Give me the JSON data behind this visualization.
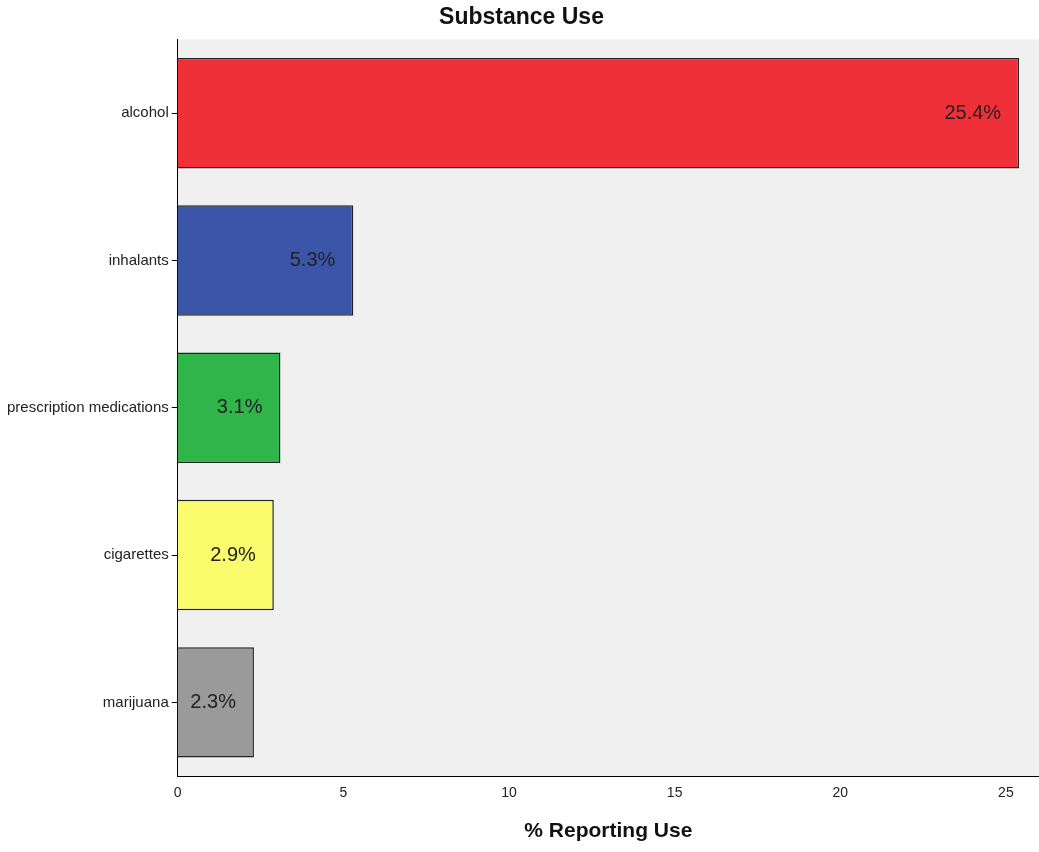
{
  "chart_data": {
    "type": "bar",
    "orientation": "horizontal",
    "title": "Substance Use",
    "xlabel": "% Reporting Use",
    "categories": [
      "alcohol",
      "inhalants",
      "prescription medications",
      "cigarettes",
      "marijuana"
    ],
    "values": [
      25.4,
      5.3,
      3.1,
      2.9,
      2.3
    ],
    "colors": [
      "#ef3038",
      "#3b56a8",
      "#2fb54a",
      "#fbfb6e",
      "#9a9a9a"
    ],
    "xlim": [
      0,
      26
    ],
    "xticks": [
      0,
      5,
      10,
      15,
      20,
      25
    ],
    "value_labels": [
      "25.4%",
      "5.3%",
      "3.1%",
      "2.9%",
      "2.3%"
    ],
    "grid": false,
    "legend": false
  }
}
